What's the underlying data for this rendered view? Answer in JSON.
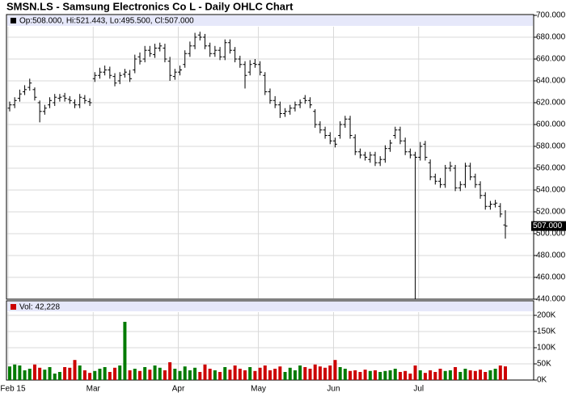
{
  "chart_data": {
    "type": "ohlc",
    "title": "SMSN.LS - Samsung Electronics Co L - Daily OHLC Chart",
    "legend": "Op:508.000, Hi:521.443, Lo:495.500, Cl:507.000",
    "last_label": "507.000",
    "color": "#000000",
    "grid": true,
    "ylim": [
      440,
      700
    ],
    "yticks": [
      {
        "value": 440,
        "label": "440.000"
      },
      {
        "value": 460,
        "label": "460.000"
      },
      {
        "value": 480,
        "label": "480.000"
      },
      {
        "value": 500,
        "label": "500.000"
      },
      {
        "value": 520,
        "label": "520.000"
      },
      {
        "value": 540,
        "label": "540.000"
      },
      {
        "value": 560,
        "label": "560.000"
      },
      {
        "value": 580,
        "label": "580.000"
      },
      {
        "value": 600,
        "label": "600.000"
      },
      {
        "value": 620,
        "label": "620.000"
      },
      {
        "value": 640,
        "label": "640.000"
      },
      {
        "value": 660,
        "label": "660.000"
      },
      {
        "value": 680,
        "label": "680.000"
      },
      {
        "value": 700,
        "label": "700.000"
      }
    ],
    "xticks": [
      {
        "value": 0,
        "label": "Feb 15"
      },
      {
        "value": 17,
        "label": "Mar"
      },
      {
        "value": 34,
        "label": "Apr"
      },
      {
        "value": 50,
        "label": "May"
      },
      {
        "value": 65,
        "label": "Jun"
      },
      {
        "value": 82,
        "label": "Jul"
      }
    ],
    "open": [
      615,
      618,
      624,
      630,
      634,
      632,
      620,
      612,
      618,
      620,
      624,
      626,
      623,
      620,
      618,
      624,
      621,
      642,
      645,
      648,
      650,
      644,
      640,
      646,
      646,
      650,
      662,
      660,
      668,
      664,
      670,
      670,
      658,
      644,
      648,
      655,
      665,
      672,
      682,
      680,
      672,
      665,
      668,
      662,
      675,
      668,
      660,
      655,
      648,
      656,
      655,
      645,
      630,
      622,
      618,
      610,
      612,
      615,
      618,
      624,
      622,
      612,
      600,
      595,
      590,
      585,
      590,
      600,
      605,
      588,
      575,
      572,
      568,
      572,
      565,
      568,
      578,
      590,
      595,
      585,
      575,
      572,
      570,
      582,
      565,
      552,
      548,
      545,
      560,
      560,
      542,
      545,
      562,
      552,
      545,
      535,
      525,
      527,
      525,
      508
    ],
    "high": [
      621,
      625,
      632,
      636,
      642,
      634,
      622,
      618,
      625,
      628,
      628,
      629,
      626,
      623,
      628,
      627,
      624,
      648,
      652,
      654,
      653,
      647,
      648,
      651,
      650,
      664,
      666,
      672,
      672,
      674,
      675,
      674,
      662,
      651,
      654,
      668,
      676,
      684,
      685,
      683,
      675,
      672,
      671,
      678,
      678,
      671,
      663,
      658,
      659,
      660,
      658,
      648,
      633,
      626,
      621,
      615,
      618,
      621,
      623,
      627,
      625,
      614,
      603,
      598,
      593,
      588,
      603,
      608,
      608,
      591,
      578,
      575,
      575,
      575,
      571,
      581,
      586,
      598,
      598,
      588,
      578,
      575,
      584,
      585,
      568,
      555,
      551,
      563,
      566,
      563,
      548,
      565,
      565,
      555,
      548,
      538,
      530,
      531,
      528,
      521.443
    ],
    "low": [
      612,
      615,
      621,
      627,
      631,
      622,
      602,
      609,
      615,
      617,
      621,
      621,
      619,
      615,
      615,
      619,
      617,
      639,
      642,
      645,
      642,
      635,
      637,
      643,
      639,
      647,
      655,
      657,
      662,
      661,
      667,
      657,
      640,
      641,
      645,
      652,
      662,
      669,
      677,
      669,
      662,
      662,
      659,
      659,
      665,
      657,
      652,
      633,
      645,
      652,
      645,
      627,
      619,
      615,
      606,
      607,
      609,
      612,
      615,
      619,
      615,
      597,
      592,
      587,
      582,
      579,
      587,
      597,
      587,
      572,
      569,
      567,
      565,
      562,
      562,
      565,
      575,
      587,
      582,
      572,
      569,
      440,
      567,
      567,
      549,
      545,
      542,
      542,
      557,
      539,
      539,
      542,
      549,
      542,
      532,
      522,
      522,
      524,
      515,
      495.5
    ],
    "close": [
      618,
      622,
      628,
      632,
      638,
      625,
      612,
      615,
      622,
      625,
      625,
      624,
      622,
      618,
      625,
      622,
      620,
      645,
      648,
      650,
      645,
      638,
      645,
      648,
      642,
      660,
      658,
      668,
      665,
      670,
      672,
      660,
      645,
      648,
      650,
      665,
      672,
      680,
      680,
      672,
      665,
      668,
      662,
      675,
      668,
      660,
      655,
      645,
      655,
      655,
      648,
      630,
      622,
      618,
      610,
      612,
      615,
      618,
      620,
      622,
      618,
      600,
      595,
      590,
      585,
      582,
      600,
      605,
      590,
      575,
      572,
      570,
      572,
      565,
      568,
      578,
      583,
      595,
      585,
      575,
      572,
      570,
      580,
      570,
      552,
      548,
      545,
      560,
      562,
      542,
      545,
      562,
      552,
      545,
      535,
      525,
      527,
      528,
      518,
      507
    ],
    "volume": {
      "label": "Vol: 42,228",
      "up_color": "#007a00",
      "down_color": "#cc0000",
      "ylim": [
        0,
        225000
      ],
      "yticks": [
        {
          "value": 0,
          "label": "0K"
        },
        {
          "value": 50000,
          "label": "50K"
        },
        {
          "value": 100000,
          "label": "100K"
        },
        {
          "value": 150000,
          "label": "150K"
        },
        {
          "value": 200000,
          "label": "200K"
        }
      ],
      "values": [
        42000,
        48000,
        45000,
        30000,
        35000,
        48000,
        38000,
        32000,
        40000,
        20000,
        25000,
        40000,
        38000,
        62000,
        45000,
        30000,
        22000,
        28000,
        35000,
        40000,
        25000,
        38000,
        45000,
        180000,
        30000,
        35000,
        28000,
        40000,
        32000,
        45000,
        38000,
        30000,
        55000,
        35000,
        28000,
        42000,
        30000,
        38000,
        25000,
        48000,
        35000,
        30000,
        25000,
        40000,
        32000,
        45000,
        35000,
        30000,
        40000,
        28000,
        38000,
        45000,
        30000,
        35000,
        42000,
        25000,
        38000,
        30000,
        45000,
        40000,
        35000,
        48000,
        42000,
        38000,
        45000,
        62000,
        40000,
        35000,
        28000,
        30000,
        25000,
        32000,
        28000,
        30000,
        25000,
        28000,
        30000,
        35000,
        25000,
        28000,
        20000,
        45000,
        30000,
        22000,
        30000,
        25000,
        35000,
        28000,
        30000,
        40000,
        25000,
        35000,
        30000,
        28000,
        32000,
        25000,
        30000,
        35000,
        45000,
        42228
      ]
    }
  }
}
